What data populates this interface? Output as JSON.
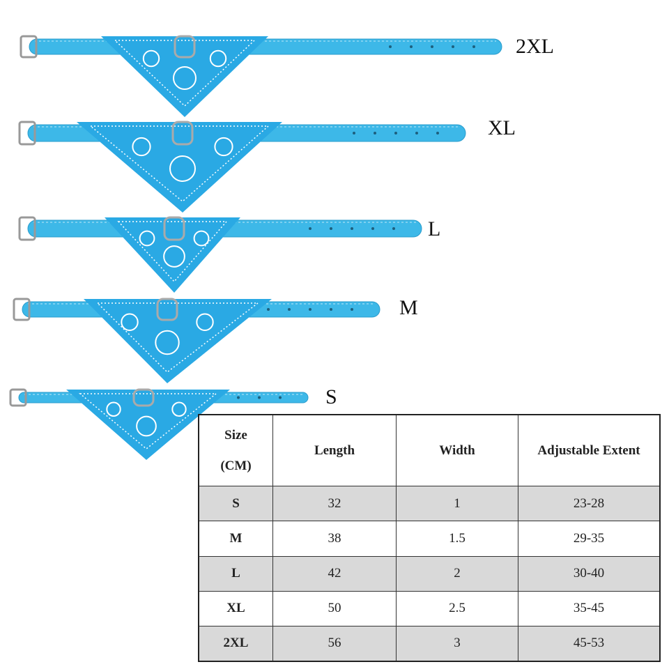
{
  "colors": {
    "strap": "#3db8e8",
    "bandana": "#2aa9e4",
    "pattern": "#ffffff",
    "row_shade": "#d9d9d9"
  },
  "collar_labels": [
    "2XL",
    "XL",
    "L",
    "M",
    "S"
  ],
  "table": {
    "headers": [
      "Size (CM)",
      "Length",
      "Width",
      "Adjustable Extent"
    ],
    "header_size_line1": "Size",
    "header_size_line2": "(CM)",
    "rows": [
      {
        "size": "S",
        "length": "32",
        "width": "1",
        "extent": "23-28"
      },
      {
        "size": "M",
        "length": "38",
        "width": "1.5",
        "extent": "29-35"
      },
      {
        "size": "L",
        "length": "42",
        "width": "2",
        "extent": "30-40"
      },
      {
        "size": "XL",
        "length": "50",
        "width": "2.5",
        "extent": "35-45"
      },
      {
        "size": "2XL",
        "length": "56",
        "width": "3",
        "extent": "45-53"
      }
    ]
  }
}
